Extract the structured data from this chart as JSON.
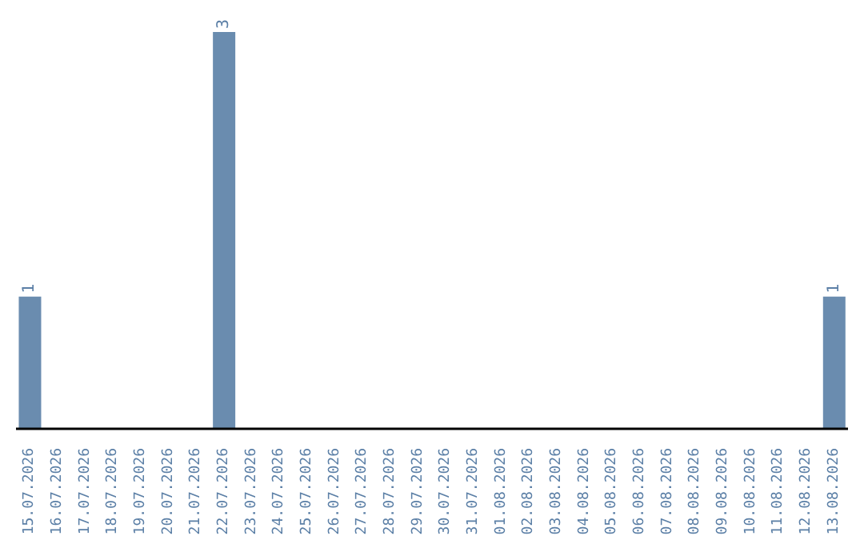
{
  "chart_data": {
    "type": "bar",
    "categories": [
      "15.07.2026",
      "16.07.2026",
      "17.07.2026",
      "18.07.2026",
      "19.07.2026",
      "20.07.2026",
      "21.07.2026",
      "22.07.2026",
      "23.07.2026",
      "24.07.2026",
      "25.07.2026",
      "26.07.2026",
      "27.07.2026",
      "28.07.2026",
      "29.07.2026",
      "30.07.2026",
      "31.07.2026",
      "01.08.2026",
      "02.08.2026",
      "03.08.2026",
      "04.08.2026",
      "05.08.2026",
      "06.08.2026",
      "07.08.2026",
      "08.08.2026",
      "09.08.2026",
      "10.08.2026",
      "11.08.2026",
      "12.08.2026",
      "13.08.2026"
    ],
    "values": [
      1,
      0,
      0,
      0,
      0,
      0,
      0,
      3,
      0,
      0,
      0,
      0,
      0,
      0,
      0,
      0,
      0,
      0,
      0,
      0,
      0,
      0,
      0,
      0,
      0,
      0,
      0,
      0,
      0,
      1
    ],
    "value_labels": [
      "1",
      null,
      null,
      null,
      null,
      null,
      null,
      "3",
      null,
      null,
      null,
      null,
      null,
      null,
      null,
      null,
      null,
      null,
      null,
      null,
      null,
      null,
      null,
      null,
      null,
      null,
      null,
      null,
      null,
      "1"
    ],
    "color": "#6a8caf",
    "ylim": [
      0,
      3
    ],
    "tick_labels": "x",
    "grid": false,
    "legend": false
  }
}
